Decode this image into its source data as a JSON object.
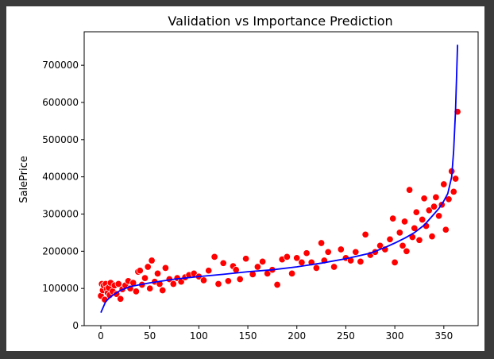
{
  "chart_data": {
    "type": "scatter",
    "title": "Validation vs Importance Prediction",
    "xlabel": "",
    "ylabel": "SalePrice",
    "xlim": [
      -17,
      385
    ],
    "ylim": [
      0,
      790000
    ],
    "xticks": [
      0,
      50,
      100,
      150,
      200,
      250,
      300,
      350
    ],
    "yticks": [
      0,
      100000,
      200000,
      300000,
      400000,
      500000,
      600000,
      700000
    ],
    "grid": false,
    "colors": {
      "scatter": "#ff0000",
      "line": "#0000ff"
    },
    "series": [
      {
        "type": "scatter",
        "count": 365,
        "x": [
          0,
          1,
          2,
          3,
          4,
          5,
          6,
          7,
          8,
          9,
          10,
          12,
          14,
          16,
          18,
          20,
          22,
          25,
          28,
          30,
          33,
          36,
          38,
          40,
          42,
          45,
          48,
          50,
          52,
          55,
          58,
          60,
          63,
          66,
          70,
          74,
          78,
          82,
          86,
          90,
          95,
          100,
          105,
          110,
          116,
          120,
          125,
          130,
          135,
          138,
          142,
          148,
          155,
          160,
          165,
          170,
          175,
          180,
          185,
          190,
          195,
          200,
          205,
          210,
          215,
          220,
          225,
          228,
          232,
          238,
          245,
          250,
          255,
          260,
          265,
          270,
          275,
          280,
          285,
          290,
          295,
          298,
          300,
          305,
          308,
          310,
          312,
          315,
          318,
          320,
          322,
          325,
          328,
          330,
          332,
          335,
          338,
          340,
          342,
          345,
          348,
          350,
          352,
          355,
          358,
          360,
          362,
          364
        ],
        "y": [
          80000,
          112000,
          95000,
          108000,
          70000,
          112000,
          99000,
          88000,
          102000,
          82000,
          115000,
          92000,
          108000,
          85000,
          112000,
          72000,
          98000,
          108000,
          120000,
          100000,
          115000,
          92000,
          145000,
          148000,
          110000,
          128000,
          158000,
          100000,
          175000,
          118000,
          140000,
          112000,
          95000,
          155000,
          125000,
          112000,
          128000,
          118000,
          130000,
          136000,
          140000,
          132000,
          122000,
          148000,
          185000,
          112000,
          168000,
          120000,
          160000,
          150000,
          125000,
          180000,
          138000,
          158000,
          172000,
          140000,
          150000,
          110000,
          178000,
          185000,
          140000,
          182000,
          170000,
          195000,
          170000,
          155000,
          222000,
          175000,
          198000,
          158000,
          205000,
          182000,
          175000,
          198000,
          172000,
          245000,
          190000,
          198000,
          215000,
          205000,
          232000,
          288000,
          170000,
          250000,
          215000,
          280000,
          200000,
          365000,
          238000,
          262000,
          305000,
          230000,
          285000,
          342000,
          268000,
          310000,
          240000,
          320000,
          345000,
          295000,
          325000,
          380000,
          258000,
          340000,
          415000,
          360000,
          395000,
          575000
        ]
      },
      {
        "type": "line",
        "x": [
          0,
          5,
          10,
          20,
          30,
          50,
          75,
          100,
          125,
          150,
          175,
          200,
          225,
          250,
          275,
          290,
          300,
          310,
          320,
          330,
          340,
          345,
          350,
          354,
          358,
          360,
          362,
          364
        ],
        "y": [
          35000,
          65000,
          78000,
          95000,
          105000,
          115000,
          125000,
          132000,
          138000,
          145000,
          150000,
          158000,
          168000,
          180000,
          195000,
          210000,
          222000,
          235000,
          250000,
          270000,
          300000,
          315000,
          335000,
          355000,
          400000,
          470000,
          580000,
          755000
        ]
      }
    ]
  }
}
